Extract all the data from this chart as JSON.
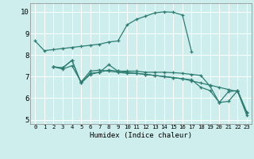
{
  "xlabel": "Humidex (Indice chaleur)",
  "xlim": [
    -0.5,
    23.5
  ],
  "ylim": [
    4.8,
    10.4
  ],
  "yticks": [
    5,
    6,
    7,
    8,
    9,
    10
  ],
  "xticks": [
    0,
    1,
    2,
    3,
    4,
    5,
    6,
    7,
    8,
    9,
    10,
    11,
    12,
    13,
    14,
    15,
    16,
    17,
    18,
    19,
    20,
    21,
    22,
    23
  ],
  "bg_color": "#ceeeed",
  "line_color": "#2e7d72",
  "grid_color": "#ffffff",
  "lines": [
    {
      "x": [
        0,
        1,
        2,
        3,
        4,
        5,
        6,
        7,
        8,
        9,
        10,
        11,
        12,
        13,
        14,
        15,
        16,
        17
      ],
      "y": [
        8.65,
        8.2,
        8.25,
        8.3,
        8.35,
        8.4,
        8.45,
        8.5,
        8.6,
        8.65,
        9.4,
        9.65,
        9.8,
        9.95,
        10.0,
        9.98,
        9.85,
        8.15
      ]
    },
    {
      "x": [
        2,
        3,
        4,
        5,
        6,
        7,
        8,
        9,
        10,
        11,
        12,
        13,
        14,
        15,
        16,
        17,
        18,
        19,
        20,
        21,
        22,
        23
      ],
      "y": [
        7.45,
        7.4,
        7.75,
        6.7,
        7.15,
        7.2,
        7.55,
        7.25,
        7.25,
        7.25,
        7.2,
        7.2,
        7.2,
        7.18,
        7.15,
        7.1,
        7.05,
        6.55,
        5.8,
        6.3,
        6.35,
        5.35
      ]
    },
    {
      "x": [
        2,
        3,
        4,
        5,
        6,
        7,
        8,
        9,
        10,
        11,
        12,
        13,
        14,
        15,
        16,
        17,
        18,
        19,
        20,
        21,
        22,
        23
      ],
      "y": [
        7.45,
        7.4,
        7.75,
        6.7,
        7.1,
        7.2,
        7.3,
        7.25,
        7.2,
        7.15,
        7.1,
        7.05,
        7.0,
        6.95,
        6.9,
        6.8,
        6.7,
        6.6,
        6.5,
        6.4,
        6.3,
        5.2
      ]
    },
    {
      "x": [
        2,
        3,
        4,
        5,
        6,
        7,
        8,
        9,
        10,
        11,
        12,
        13,
        14,
        15,
        16,
        17,
        18,
        19,
        20,
        21,
        22,
        23
      ],
      "y": [
        7.45,
        7.35,
        7.5,
        6.75,
        7.25,
        7.3,
        7.25,
        7.2,
        7.15,
        7.15,
        7.1,
        7.05,
        7.0,
        6.95,
        6.9,
        6.85,
        6.5,
        6.35,
        5.8,
        5.85,
        6.35,
        5.3
      ]
    }
  ]
}
